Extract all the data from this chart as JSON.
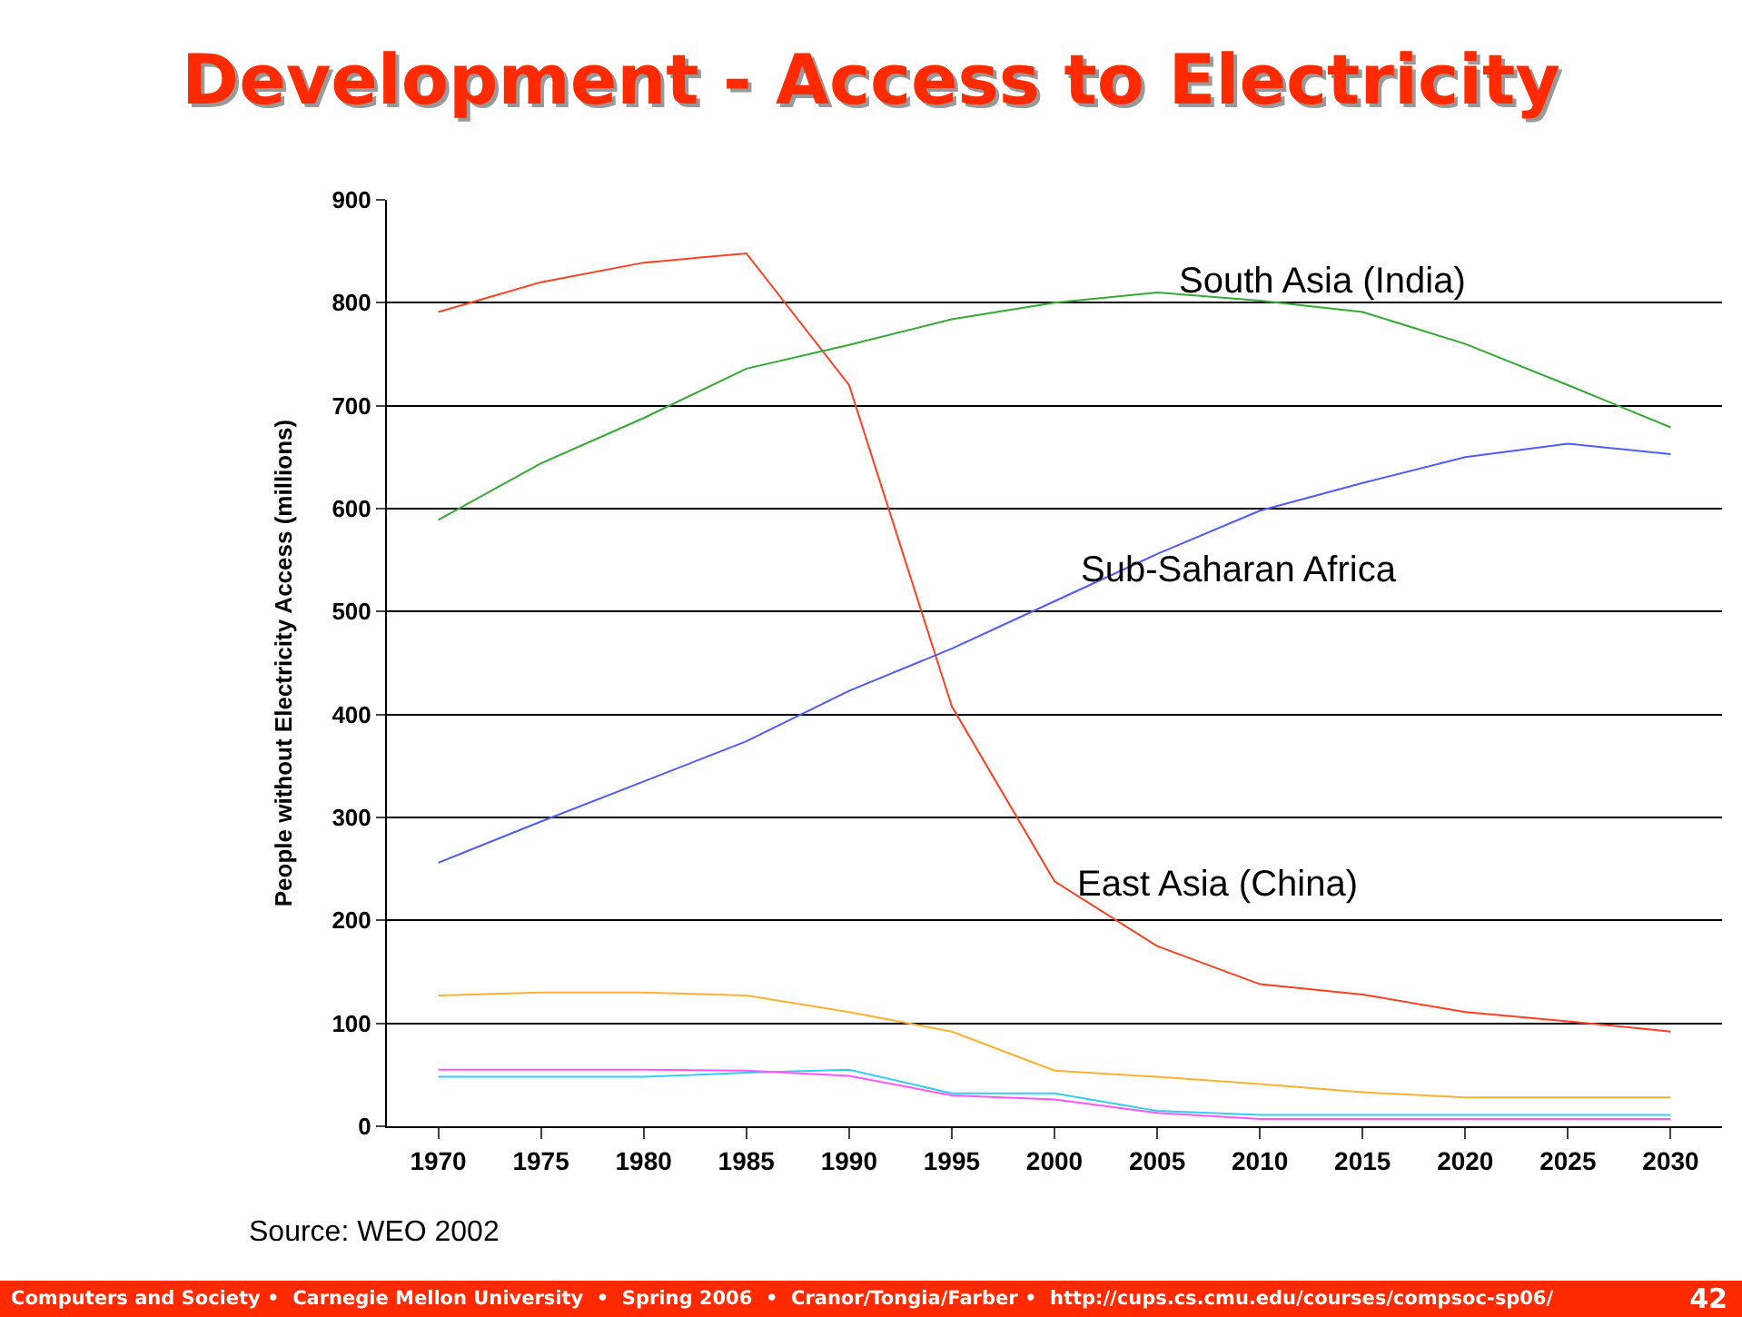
{
  "chart_data": {
    "type": "line",
    "title": "Development - Access to Electricity",
    "ylabel": "People without Electricity Access (millions)",
    "x": [
      1970,
      1975,
      1980,
      1985,
      1990,
      1995,
      2000,
      2005,
      2010,
      2015,
      2020,
      2025,
      2030
    ],
    "xlim": [
      1967.5,
      2032.5
    ],
    "xticks": [
      1970,
      1975,
      1980,
      1985,
      1990,
      1995,
      2000,
      2005,
      2010,
      2015,
      2020,
      2025,
      2030
    ],
    "ylim": [
      0,
      900
    ],
    "yticks": [
      0,
      100,
      200,
      300,
      400,
      500,
      600,
      700,
      800,
      900
    ],
    "grid": "y",
    "legend": false,
    "marker": "none",
    "line_style": "solid",
    "series": [
      {
        "name": "East Asia (China)",
        "color": "#ff4020",
        "values": [
          791,
          820,
          839,
          848,
          720,
          408,
          238,
          175,
          138,
          128,
          111,
          102,
          92
        ]
      },
      {
        "name": "South Asia (India)",
        "color": "#33aa33",
        "values": [
          589,
          644,
          688,
          736,
          759,
          784,
          800,
          810,
          802,
          791,
          760,
          720,
          679
        ]
      },
      {
        "name": "Sub-Saharan Africa",
        "color": "#4d5bff",
        "values": [
          256,
          296,
          335,
          374,
          423,
          464,
          510,
          556,
          598,
          625,
          650,
          663,
          653
        ]
      },
      {
        "color": "#ffb030",
        "values": [
          127,
          130,
          130,
          127,
          111,
          92,
          54,
          48,
          41,
          33,
          28,
          28,
          28
        ]
      },
      {
        "color": "#33ccff",
        "values": [
          48,
          48,
          48,
          52,
          55,
          32,
          32,
          15,
          11,
          11,
          11,
          11,
          11
        ]
      },
      {
        "color": "#ff55ff",
        "values": [
          55,
          55,
          55,
          54,
          49,
          30,
          26,
          13,
          7,
          7,
          7,
          7,
          7
        ]
      }
    ],
    "annotations": [
      "Source: WEO 2002",
      "Computers and Society •  Carnegie Mellon University  •  Spring 2006  •  Cranor/Tongia/Farber •  http://cups.cs.cmu.edu/courses/compsoc-sp06/",
      "42"
    ]
  }
}
